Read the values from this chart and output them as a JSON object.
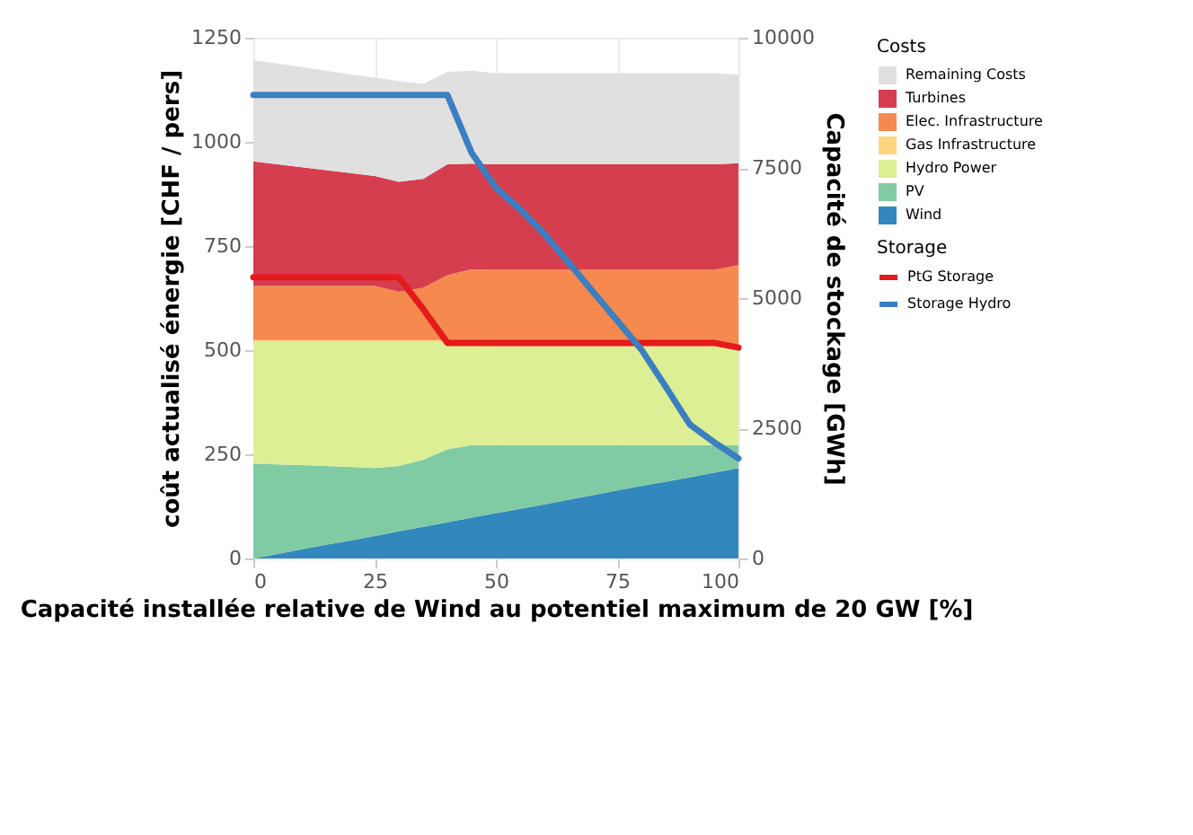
{
  "chart_data": {
    "type": "area",
    "stacked": true,
    "xlabel": "Capacité installée relative de Wind au potentiel maximum de 20 GW [%]",
    "ylabel": "coût actualisé énergie [CHF / pers]",
    "y2label": "Capacité de stockage [GWh]",
    "legend_title": "Costs",
    "legend": "right",
    "grid": true,
    "annotations": [
      "Storage"
    ],
    "x": [
      0,
      5,
      10,
      15,
      20,
      25,
      30,
      35,
      40,
      45,
      50,
      55,
      60,
      65,
      70,
      75,
      80,
      85,
      90,
      95,
      100
    ],
    "xlim": [
      0,
      100
    ],
    "xticks": [
      0,
      25,
      50,
      75,
      100
    ],
    "ylim": [
      0,
      1250
    ],
    "yticks": [
      0,
      250,
      500,
      750,
      1000,
      1250
    ],
    "y2lim": [
      0,
      10000
    ],
    "y2ticks": [
      0,
      2500,
      5000,
      7500,
      10000
    ],
    "series": [
      {
        "name": "Wind",
        "color": "#3288bd",
        "values": [
          0,
          11,
          22,
          33,
          43,
          54,
          65,
          76,
          87,
          98,
          109,
          119,
          130,
          141,
          152,
          163,
          174,
          184,
          195,
          206,
          217
        ]
      },
      {
        "name": "PV",
        "color": "#80cba4",
        "values": [
          228,
          215,
          202,
          189,
          177,
          163,
          157,
          161,
          175,
          174,
          163,
          153,
          142,
          131,
          120,
          109,
          98,
          88,
          77,
          66,
          55
        ]
      },
      {
        "name": "Hydro Power",
        "color": "#dcef94",
        "values": [
          292,
          294,
          296,
          298,
          300,
          303,
          298,
          283,
          258,
          238,
          236,
          236,
          236,
          236,
          236,
          236,
          236,
          236,
          236,
          236,
          236
        ]
      },
      {
        "name": "Gas Infrastructure",
        "color": "#fed481",
        "values": [
          4,
          4,
          4,
          4,
          4,
          4,
          4,
          4,
          4,
          4,
          4,
          4,
          4,
          4,
          4,
          4,
          4,
          4,
          4,
          4,
          4
        ]
      },
      {
        "name": "Elec. Infrastructure",
        "color": "#f6894e",
        "values": [
          130,
          130,
          130,
          130,
          130,
          130,
          116,
          126,
          156,
          180,
          181,
          181,
          181,
          181,
          181,
          181,
          181,
          181,
          181,
          181,
          192
        ]
      },
      {
        "name": "Turbines",
        "color": "#d53e4f",
        "values": [
          299,
          292,
          285,
          278,
          271,
          264,
          264,
          261,
          266,
          254,
          253,
          253,
          253,
          253,
          253,
          253,
          253,
          253,
          253,
          253,
          245
        ]
      },
      {
        "name": "Remaining Costs",
        "color": "#e0e0e0",
        "values": [
          243,
          242,
          241,
          239,
          237,
          236,
          242,
          228,
          222,
          223,
          219,
          219,
          219,
          219,
          219,
          219,
          219,
          219,
          219,
          219,
          212
        ]
      },
      {
        "name": "PtG Storage",
        "type": "line",
        "axis": "y2",
        "color": "#e41a1c",
        "values": [
          5400,
          5400,
          5400,
          5400,
          5400,
          5400,
          5400,
          4790,
          4140,
          4140,
          4140,
          4140,
          4140,
          4140,
          4140,
          4140,
          4140,
          4140,
          4140,
          4140,
          4050
        ]
      },
      {
        "name": "Storage Hydro",
        "type": "line",
        "axis": "y2",
        "color": "#3a7fc1",
        "values": [
          8900,
          8900,
          8900,
          8900,
          8900,
          8900,
          8900,
          8900,
          8900,
          7790,
          7120,
          6700,
          6230,
          5680,
          5120,
          4570,
          4010,
          3300,
          2570,
          2230,
          1920
        ]
      }
    ]
  }
}
